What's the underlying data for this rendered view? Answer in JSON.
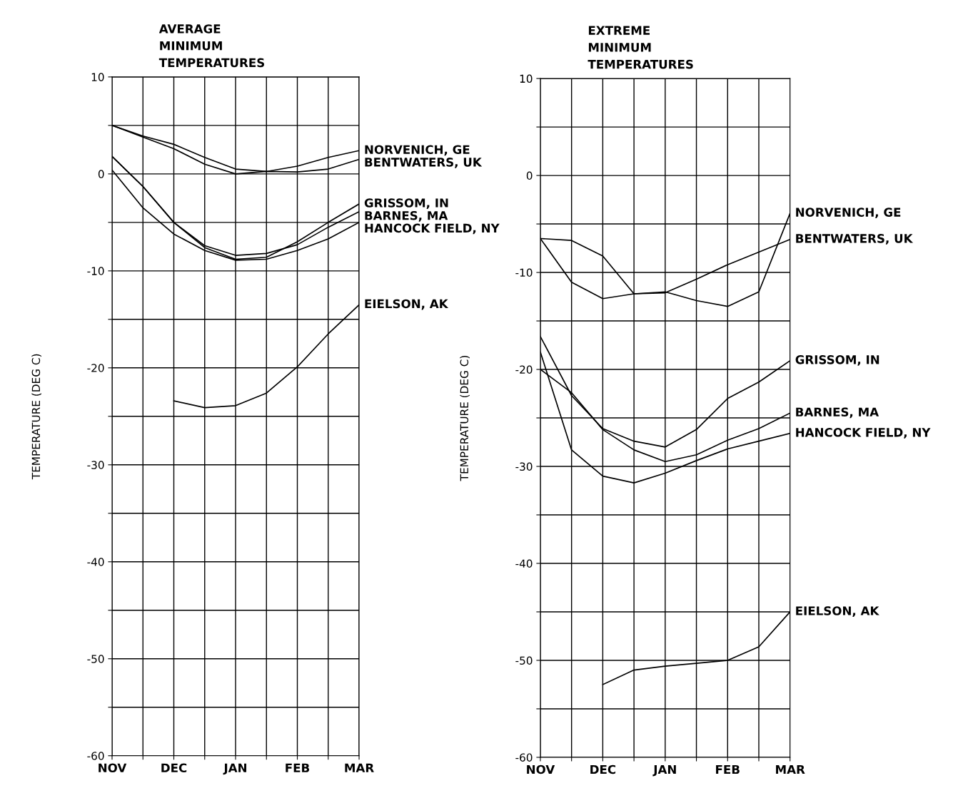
{
  "chart_data": [
    {
      "type": "line",
      "title": "AVERAGE\nMINIMUM\nTEMPERATURES",
      "ylabel": "TEMPERATURE (DEG C)",
      "legend": false,
      "grid": true,
      "marker": "none",
      "line_style": "solid",
      "categories": [
        "NOV",
        null,
        "DEC",
        null,
        "JAN",
        null,
        "FEB",
        null,
        "MAR"
      ],
      "ylim": [
        -60,
        10
      ],
      "yticks": [
        10,
        {
          "value": 5,
          "label": null
        },
        0,
        {
          "value": -5,
          "label": null
        },
        -10,
        {
          "value": -15,
          "label": null
        },
        -20,
        {
          "value": -25,
          "label": null
        },
        -30,
        {
          "value": -35,
          "label": null
        },
        -40,
        {
          "value": -45,
          "label": null
        },
        -50,
        {
          "value": -55,
          "label": null
        },
        -60
      ],
      "series": [
        {
          "name": "NORVENICH, GE",
          "color": "#000000",
          "values": [
            5,
            3.9,
            3.05,
            1.7,
            0.5,
            0.25,
            0.8,
            1.7,
            2.4
          ]
        },
        {
          "name": "BENTWATERS, UK",
          "color": "#000000",
          "values": [
            5,
            3.8,
            2.6,
            1.0,
            0.0,
            0.25,
            0.2,
            0.5,
            1.5
          ]
        },
        {
          "name": "GRISSOM, IN",
          "color": "#000000",
          "values": [
            1.8,
            -1.3,
            -5,
            -7.6,
            -8.8,
            -8.6,
            -7.0,
            -5,
            -3.1
          ]
        },
        {
          "name": "BARNES, MA",
          "color": "#000000",
          "values": [
            1.8,
            -1.3,
            -5,
            -7.4,
            -8.4,
            -8.2,
            -7.3,
            -5.5,
            -3.9
          ]
        },
        {
          "name": "HANCOCK FIELD, NY",
          "color": "#000000",
          "values": [
            0.4,
            -3.5,
            -6.2,
            -7.9,
            -8.9,
            -8.8,
            -7.9,
            -6.7,
            -5
          ]
        },
        {
          "name": "EIELSON, AK",
          "color": "#000000",
          "values": [
            null,
            null,
            -23.4,
            -24.1,
            -23.9,
            -22.6,
            -19.9,
            -16.5,
            -13.5
          ]
        }
      ]
    },
    {
      "type": "line",
      "title": "EXTREME\nMINIMUM\nTEMPERATURES",
      "ylabel": "TEMPERATURE (DEG C)",
      "legend": false,
      "grid": true,
      "marker": "none",
      "line_style": "solid",
      "categories": [
        "NOV",
        null,
        "DEC",
        null,
        "JAN",
        null,
        "FEB",
        null,
        "MAR"
      ],
      "ylim": [
        -60,
        10
      ],
      "yticks": [
        10,
        {
          "value": 5,
          "label": null
        },
        0,
        {
          "value": -5,
          "label": null
        },
        -10,
        {
          "value": -15,
          "label": null
        },
        -20,
        {
          "value": -25,
          "label": null
        },
        -30,
        {
          "value": -35,
          "label": null
        },
        -40,
        {
          "value": -45,
          "label": null
        },
        -50,
        {
          "value": -55,
          "label": null
        },
        -60
      ],
      "series": [
        {
          "name": "NORVENICH, GE",
          "color": "#000000",
          "values": [
            -6.5,
            -11.0,
            -12.7,
            -12.2,
            -12.0,
            -12.9,
            -13.5,
            -12.0,
            -3.9
          ]
        },
        {
          "name": "BENTWATERS, UK",
          "color": "#000000",
          "values": [
            -6.5,
            -6.7,
            -8.3,
            -12.2,
            -12.1,
            -10.7,
            -9.2,
            -7.9,
            -6.6
          ]
        },
        {
          "name": "GRISSOM, IN",
          "color": "#000000",
          "values": [
            -16.6,
            -22.7,
            -26.1,
            -27.4,
            -28.0,
            -26.2,
            -23.0,
            -21.3,
            -19.1
          ]
        },
        {
          "name": "BARNES, MA",
          "color": "#000000",
          "values": [
            -20,
            -22.4,
            -26.2,
            -28.3,
            -29.5,
            -28.8,
            -27.3,
            -26.1,
            -24.5
          ]
        },
        {
          "name": "HANCOCK FIELD, NY",
          "color": "#000000",
          "values": [
            -18.2,
            -28.3,
            -31.0,
            -31.7,
            -30.7,
            -29.4,
            -28.2,
            -27.4,
            -26.6
          ]
        },
        {
          "name": "EIELSON, AK",
          "color": "#000000",
          "values": [
            null,
            null,
            -52.5,
            -51.0,
            -50.6,
            -50.3,
            -50.0,
            -48.6,
            -45
          ]
        }
      ]
    }
  ]
}
